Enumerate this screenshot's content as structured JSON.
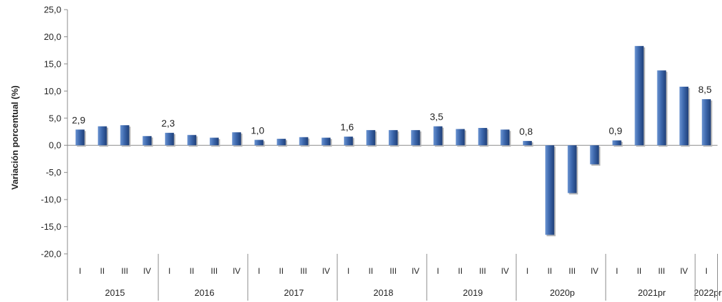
{
  "chart_data": {
    "type": "bar",
    "ylabel": "Variación porcentual  (%)",
    "xlabel": "",
    "ylim": [
      -20,
      25
    ],
    "yticks": [
      25,
      20,
      15,
      10,
      5,
      0,
      -5,
      -10,
      -15,
      -20
    ],
    "ytick_labels": [
      "25,0",
      "20,0",
      "15,0",
      "10,0",
      "5,0",
      "0,0",
      "-5,0",
      "-10,0",
      "-15,0",
      "-20,0"
    ],
    "grid": false,
    "legend": "none",
    "colors": {
      "bar": "#2f5597",
      "bar_light": "#5b86c9",
      "axis": "#888888"
    },
    "groups": [
      {
        "year": "2015",
        "quarters": [
          "I",
          "II",
          "III",
          "IV"
        ],
        "values": [
          2.9,
          3.5,
          3.7,
          1.7
        ],
        "labels": [
          "2,9",
          "",
          "",
          ""
        ]
      },
      {
        "year": "2016",
        "quarters": [
          "I",
          "II",
          "III",
          "IV"
        ],
        "values": [
          2.3,
          1.9,
          1.4,
          2.4
        ],
        "labels": [
          "2,3",
          "",
          "",
          ""
        ]
      },
      {
        "year": "2017",
        "quarters": [
          "I",
          "II",
          "III",
          "IV"
        ],
        "values": [
          1.0,
          1.2,
          1.5,
          1.4
        ],
        "labels": [
          "1,0",
          "",
          "",
          ""
        ]
      },
      {
        "year": "2018",
        "quarters": [
          "I",
          "II",
          "III",
          "IV"
        ],
        "values": [
          1.6,
          2.8,
          2.8,
          2.8
        ],
        "labels": [
          "1,6",
          "",
          "",
          ""
        ]
      },
      {
        "year": "2019",
        "quarters": [
          "I",
          "II",
          "III",
          "IV"
        ],
        "values": [
          3.5,
          3.0,
          3.2,
          2.9
        ],
        "labels": [
          "3,5",
          "",
          "",
          ""
        ]
      },
      {
        "year": "2020p",
        "quarters": [
          "I",
          "II",
          "III",
          "IV"
        ],
        "values": [
          0.8,
          -16.5,
          -8.8,
          -3.5
        ],
        "labels": [
          "0,8",
          "",
          "",
          ""
        ]
      },
      {
        "year": "2021pr",
        "quarters": [
          "I",
          "II",
          "III",
          "IV"
        ],
        "values": [
          0.9,
          18.3,
          13.8,
          10.8
        ],
        "labels": [
          "0,9",
          "",
          "",
          ""
        ]
      },
      {
        "year": "2022pr",
        "quarters": [
          "I"
        ],
        "values": [
          8.5
        ],
        "labels": [
          "8,5"
        ]
      }
    ]
  }
}
